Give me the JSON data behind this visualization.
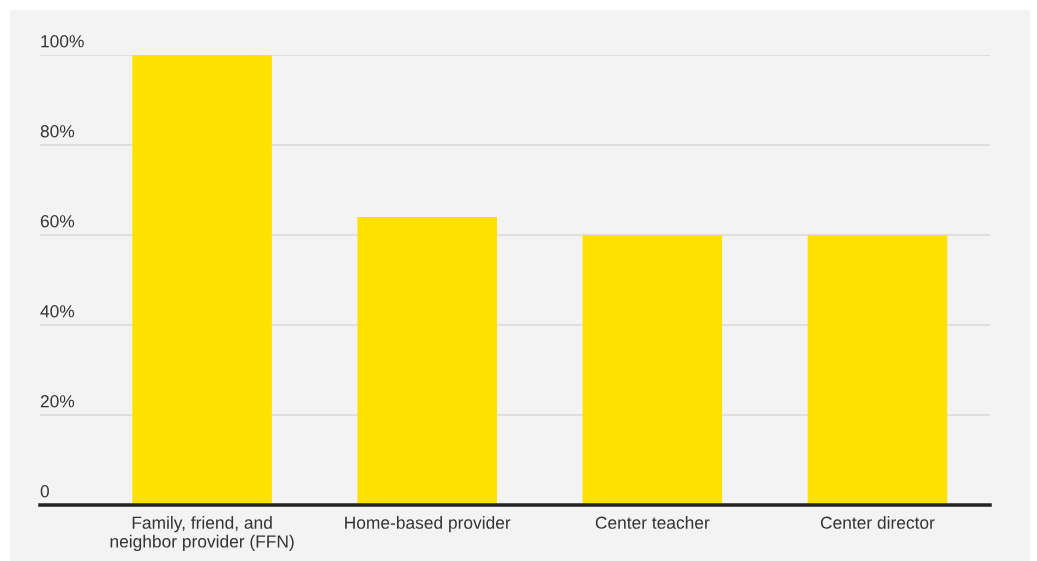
{
  "chart_data": {
    "type": "bar",
    "categories": [
      "Family, friend, and\nneighbor provider (FFN)",
      "Home-based provider",
      "Center teacher",
      "Center director"
    ],
    "values": [
      100,
      64,
      60,
      60
    ],
    "color": "#ffe100",
    "ylim": [
      0,
      100
    ],
    "yticks": [
      0,
      {
        "value": 20,
        "label": "20%"
      },
      {
        "value": 40,
        "label": "40%"
      },
      {
        "value": 60,
        "label": "60%"
      },
      {
        "value": 80,
        "label": "80%"
      },
      {
        "value": 100,
        "label": "100%"
      }
    ],
    "grid": "y"
  }
}
